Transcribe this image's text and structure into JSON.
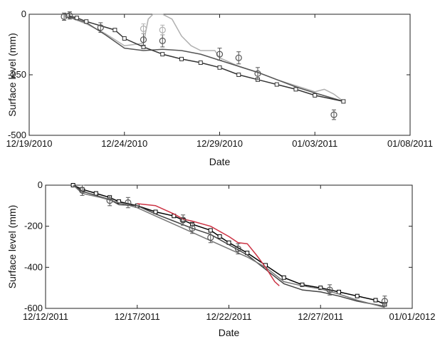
{
  "chart_data": [
    {
      "type": "line",
      "xlabel": "Date",
      "ylabel": "Surface level (mm)",
      "xlim": [
        "2010-12-19",
        "2011-01-08"
      ],
      "ylim": [
        -500,
        0
      ],
      "xticks": [
        "2010-12-19",
        "2010-12-24",
        "2010-12-29",
        "2011-01-03",
        "2011-01-08"
      ],
      "xtick_labels": [
        "12/19/2010",
        "12/24/2010",
        "12/29/2010",
        "01/03/2011",
        "01/08/2011"
      ],
      "yticks": [
        -500,
        -250,
        0
      ],
      "ytick_labels": [
        "-500",
        "-250",
        "0"
      ],
      "grid": false,
      "legend": "none",
      "series": [
        {
          "color": "#b0b0b0",
          "marker": "none",
          "style": "line",
          "x": [
            "2010-12-21",
            "2010-12-22",
            "2010-12-23",
            "2010-12-24",
            "2010-12-25",
            "2010-12-25 06:00",
            "2010-12-25 12:00",
            "2010-12-26",
            "2010-12-26 12:00",
            "2010-12-27",
            "2010-12-27 12:00",
            "2010-12-28",
            "2010-12-28 18:00",
            "2010-12-29",
            "2010-12-30",
            "2010-12-31",
            "2011-01-01",
            "2011-01-02",
            "2011-01-03",
            "2011-01-03 12:00",
            "2011-01-04",
            "2011-01-04 12:00"
          ],
          "y": [
            -10,
            -40,
            -80,
            -130,
            -120,
            -20,
            0,
            0,
            -20,
            -90,
            -130,
            -150,
            -150,
            -180,
            -215,
            -240,
            -270,
            -295,
            -320,
            -310,
            -330,
            -360
          ]
        },
        {
          "color": "#555555",
          "marker": "none",
          "style": "line",
          "x": [
            "2010-12-21",
            "2010-12-22",
            "2010-12-23",
            "2010-12-24",
            "2010-12-25",
            "2010-12-26",
            "2010-12-27",
            "2010-12-28",
            "2010-12-29",
            "2010-12-30",
            "2010-12-31",
            "2011-01-01",
            "2011-01-02",
            "2011-01-03",
            "2011-01-04 12:00"
          ],
          "y": [
            -8,
            -35,
            -85,
            -140,
            -150,
            -145,
            -150,
            -165,
            -190,
            -215,
            -240,
            -270,
            -300,
            -325,
            -360
          ]
        },
        {
          "color": "#333333",
          "marker": "square",
          "style": "line+marker",
          "x": [
            "2010-12-21",
            "2010-12-21 12:00",
            "2010-12-22",
            "2010-12-23 12:00",
            "2010-12-24",
            "2010-12-25",
            "2010-12-26",
            "2010-12-27",
            "2010-12-28",
            "2010-12-29",
            "2010-12-30",
            "2010-12-31",
            "2011-01-01",
            "2011-01-02",
            "2011-01-03",
            "2011-01-04 12:00"
          ],
          "y": [
            -5,
            -15,
            -30,
            -65,
            -100,
            -135,
            -165,
            -185,
            -200,
            -220,
            -250,
            -270,
            -290,
            -310,
            -335,
            -360
          ]
        },
        {
          "color": "#555555",
          "marker": "circle",
          "style": "marker+errorbar",
          "x": [
            "2010-12-20 20:00",
            "2010-12-21 03:00",
            "2010-12-22 18:00",
            "2010-12-25",
            "2010-12-26",
            "2010-12-29",
            "2010-12-30",
            "2010-12-31",
            "2011-01-04"
          ],
          "y": [
            -10,
            -5,
            -55,
            -105,
            -110,
            -165,
            -180,
            -245,
            -415
          ],
          "error": [
            15,
            15,
            20,
            25,
            25,
            25,
            25,
            25,
            20
          ]
        },
        {
          "color": "#b0b0b0",
          "marker": "circle",
          "style": "marker+errorbar",
          "x": [
            "2010-12-25",
            "2010-12-26"
          ],
          "y": [
            -60,
            -65
          ],
          "error": [
            20,
            20
          ]
        }
      ]
    },
    {
      "type": "line",
      "xlabel": "Date",
      "ylabel": "Surface level (mm)",
      "xlim": [
        "2011-12-12",
        "2012-01-01"
      ],
      "ylim": [
        -600,
        0
      ],
      "xticks": [
        "2011-12-12",
        "2011-12-17",
        "2011-12-22",
        "2011-12-27",
        "2012-01-01"
      ],
      "xtick_labels": [
        "12/12/2011",
        "12/17/2011",
        "12/22/2011",
        "12/27/2011",
        "01/01/2012"
      ],
      "yticks": [
        -600,
        -400,
        -200,
        0
      ],
      "ytick_labels": [
        "-600",
        "-400",
        "-200",
        "0"
      ],
      "grid": false,
      "legend": "none",
      "series": [
        {
          "color": "#000000",
          "marker": "square",
          "style": "line+marker",
          "x": [
            "2011-12-13 12:00",
            "2011-12-14",
            "2011-12-14 18:00",
            "2011-12-15 12:00",
            "2011-12-16",
            "2011-12-17",
            "2011-12-18",
            "2011-12-19",
            "2011-12-19 12:00",
            "2011-12-20",
            "2011-12-21",
            "2011-12-21 12:00",
            "2011-12-22",
            "2011-12-23",
            "2011-12-24",
            "2011-12-25",
            "2011-12-26",
            "2011-12-27",
            "2011-12-28",
            "2011-12-29",
            "2011-12-30",
            "2011-12-30 12:00"
          ],
          "y": [
            0,
            -20,
            -40,
            -60,
            -80,
            -100,
            -130,
            -150,
            -170,
            -190,
            -220,
            -250,
            -280,
            -330,
            -390,
            -450,
            -485,
            -500,
            -520,
            -540,
            -560,
            -580
          ]
        },
        {
          "color": "#444444",
          "marker": "none",
          "style": "line",
          "x": [
            "2011-12-13 12:00",
            "2011-12-14",
            "2011-12-15 12:00",
            "2011-12-16",
            "2011-12-17",
            "2011-12-18",
            "2011-12-19",
            "2011-12-20",
            "2011-12-21",
            "2011-12-22",
            "2011-12-23",
            "2011-12-24",
            "2011-12-25",
            "2011-12-26",
            "2011-12-27",
            "2011-12-28",
            "2011-12-29",
            "2011-12-30 12:00"
          ],
          "y": [
            0,
            -30,
            -70,
            -95,
            -100,
            -140,
            -175,
            -210,
            -240,
            -290,
            -340,
            -410,
            -480,
            -510,
            -520,
            -540,
            -565,
            -590
          ]
        },
        {
          "color": "#777777",
          "marker": "none",
          "style": "line",
          "x": [
            "2011-12-13 12:00",
            "2011-12-14",
            "2011-12-15",
            "2011-12-16",
            "2011-12-17",
            "2011-12-18",
            "2011-12-19",
            "2011-12-20",
            "2011-12-21",
            "2011-12-22",
            "2011-12-23",
            "2011-12-24",
            "2011-12-25",
            "2011-12-26",
            "2011-12-27",
            "2011-12-28",
            "2011-12-29",
            "2011-12-30 12:00"
          ],
          "y": [
            0,
            -40,
            -60,
            -85,
            -110,
            -150,
            -190,
            -230,
            -270,
            -310,
            -350,
            -400,
            -470,
            -490,
            -505,
            -530,
            -560,
            -595
          ]
        },
        {
          "color": "#cc3344",
          "marker": "none",
          "style": "line",
          "x": [
            "2011-12-17",
            "2011-12-18",
            "2011-12-19",
            "2011-12-19 12:00",
            "2011-12-20",
            "2011-12-21",
            "2011-12-22",
            "2011-12-22 12:00",
            "2011-12-23",
            "2011-12-23 12:00",
            "2011-12-24",
            "2011-12-24 12:00",
            "2011-12-24 18:00"
          ],
          "y": [
            -90,
            -100,
            -140,
            -165,
            -175,
            -200,
            -250,
            -280,
            -285,
            -340,
            -400,
            -470,
            -490
          ]
        },
        {
          "color": "#555555",
          "marker": "circle",
          "style": "marker+errorbar",
          "x": [
            "2011-12-14",
            "2011-12-15 12:00",
            "2011-12-16 12:00",
            "2011-12-19 12:00",
            "2011-12-20",
            "2011-12-21",
            "2011-12-22 12:00",
            "2011-12-27 12:00",
            "2011-12-30 12:00"
          ],
          "y": [
            -25,
            -75,
            -85,
            -170,
            -210,
            -255,
            -310,
            -510,
            -565
          ],
          "error": [
            25,
            25,
            25,
            25,
            25,
            25,
            25,
            25,
            25
          ]
        }
      ]
    }
  ]
}
